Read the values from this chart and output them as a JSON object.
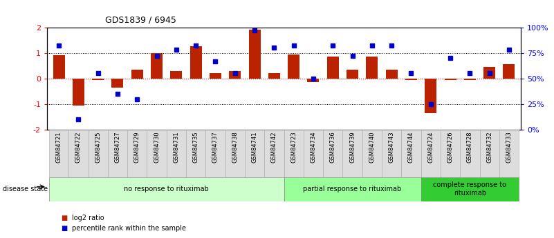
{
  "title": "GDS1839 / 6945",
  "samples": [
    "GSM84721",
    "GSM84722",
    "GSM84725",
    "GSM84727",
    "GSM84729",
    "GSM84730",
    "GSM84731",
    "GSM84735",
    "GSM84737",
    "GSM84738",
    "GSM84741",
    "GSM84742",
    "GSM84723",
    "GSM84734",
    "GSM84736",
    "GSM84739",
    "GSM84740",
    "GSM84743",
    "GSM84744",
    "GSM84724",
    "GSM84726",
    "GSM84728",
    "GSM84732",
    "GSM84733"
  ],
  "log2_ratio": [
    0.9,
    -1.05,
    -0.05,
    -0.35,
    0.35,
    1.0,
    0.3,
    1.25,
    0.2,
    0.3,
    1.9,
    0.2,
    0.95,
    -0.15,
    0.85,
    0.35,
    0.85,
    0.35,
    -0.07,
    -1.35,
    -0.07,
    -0.07,
    0.45,
    0.55
  ],
  "percentile": [
    82,
    10,
    55,
    35,
    30,
    72,
    78,
    82,
    67,
    55,
    97,
    80,
    82,
    50,
    82,
    72,
    82,
    82,
    55,
    25,
    70,
    55,
    55,
    78
  ],
  "groups": [
    {
      "label": "no response to rituximab",
      "start": 0,
      "end": 12,
      "color": "#ccffcc"
    },
    {
      "label": "partial response to rituximab",
      "start": 12,
      "end": 19,
      "color": "#99ff99"
    },
    {
      "label": "complete response to\nrituximab",
      "start": 19,
      "end": 24,
      "color": "#33cc33"
    }
  ],
  "bar_color": "#bb2200",
  "dot_color": "#0000cc",
  "ylim_left": [
    -2,
    2
  ],
  "ylim_right": [
    0,
    100
  ],
  "yticks_left": [
    -2,
    -1,
    0,
    1,
    2
  ],
  "ytick_labels_left": [
    "-2",
    "-1",
    "0",
    "1",
    "2"
  ],
  "yticks_right": [
    0,
    25,
    50,
    75,
    100
  ],
  "ytick_labels_right": [
    "0%",
    "25%",
    "50%",
    "75%",
    "100%"
  ],
  "background": "#ffffff"
}
